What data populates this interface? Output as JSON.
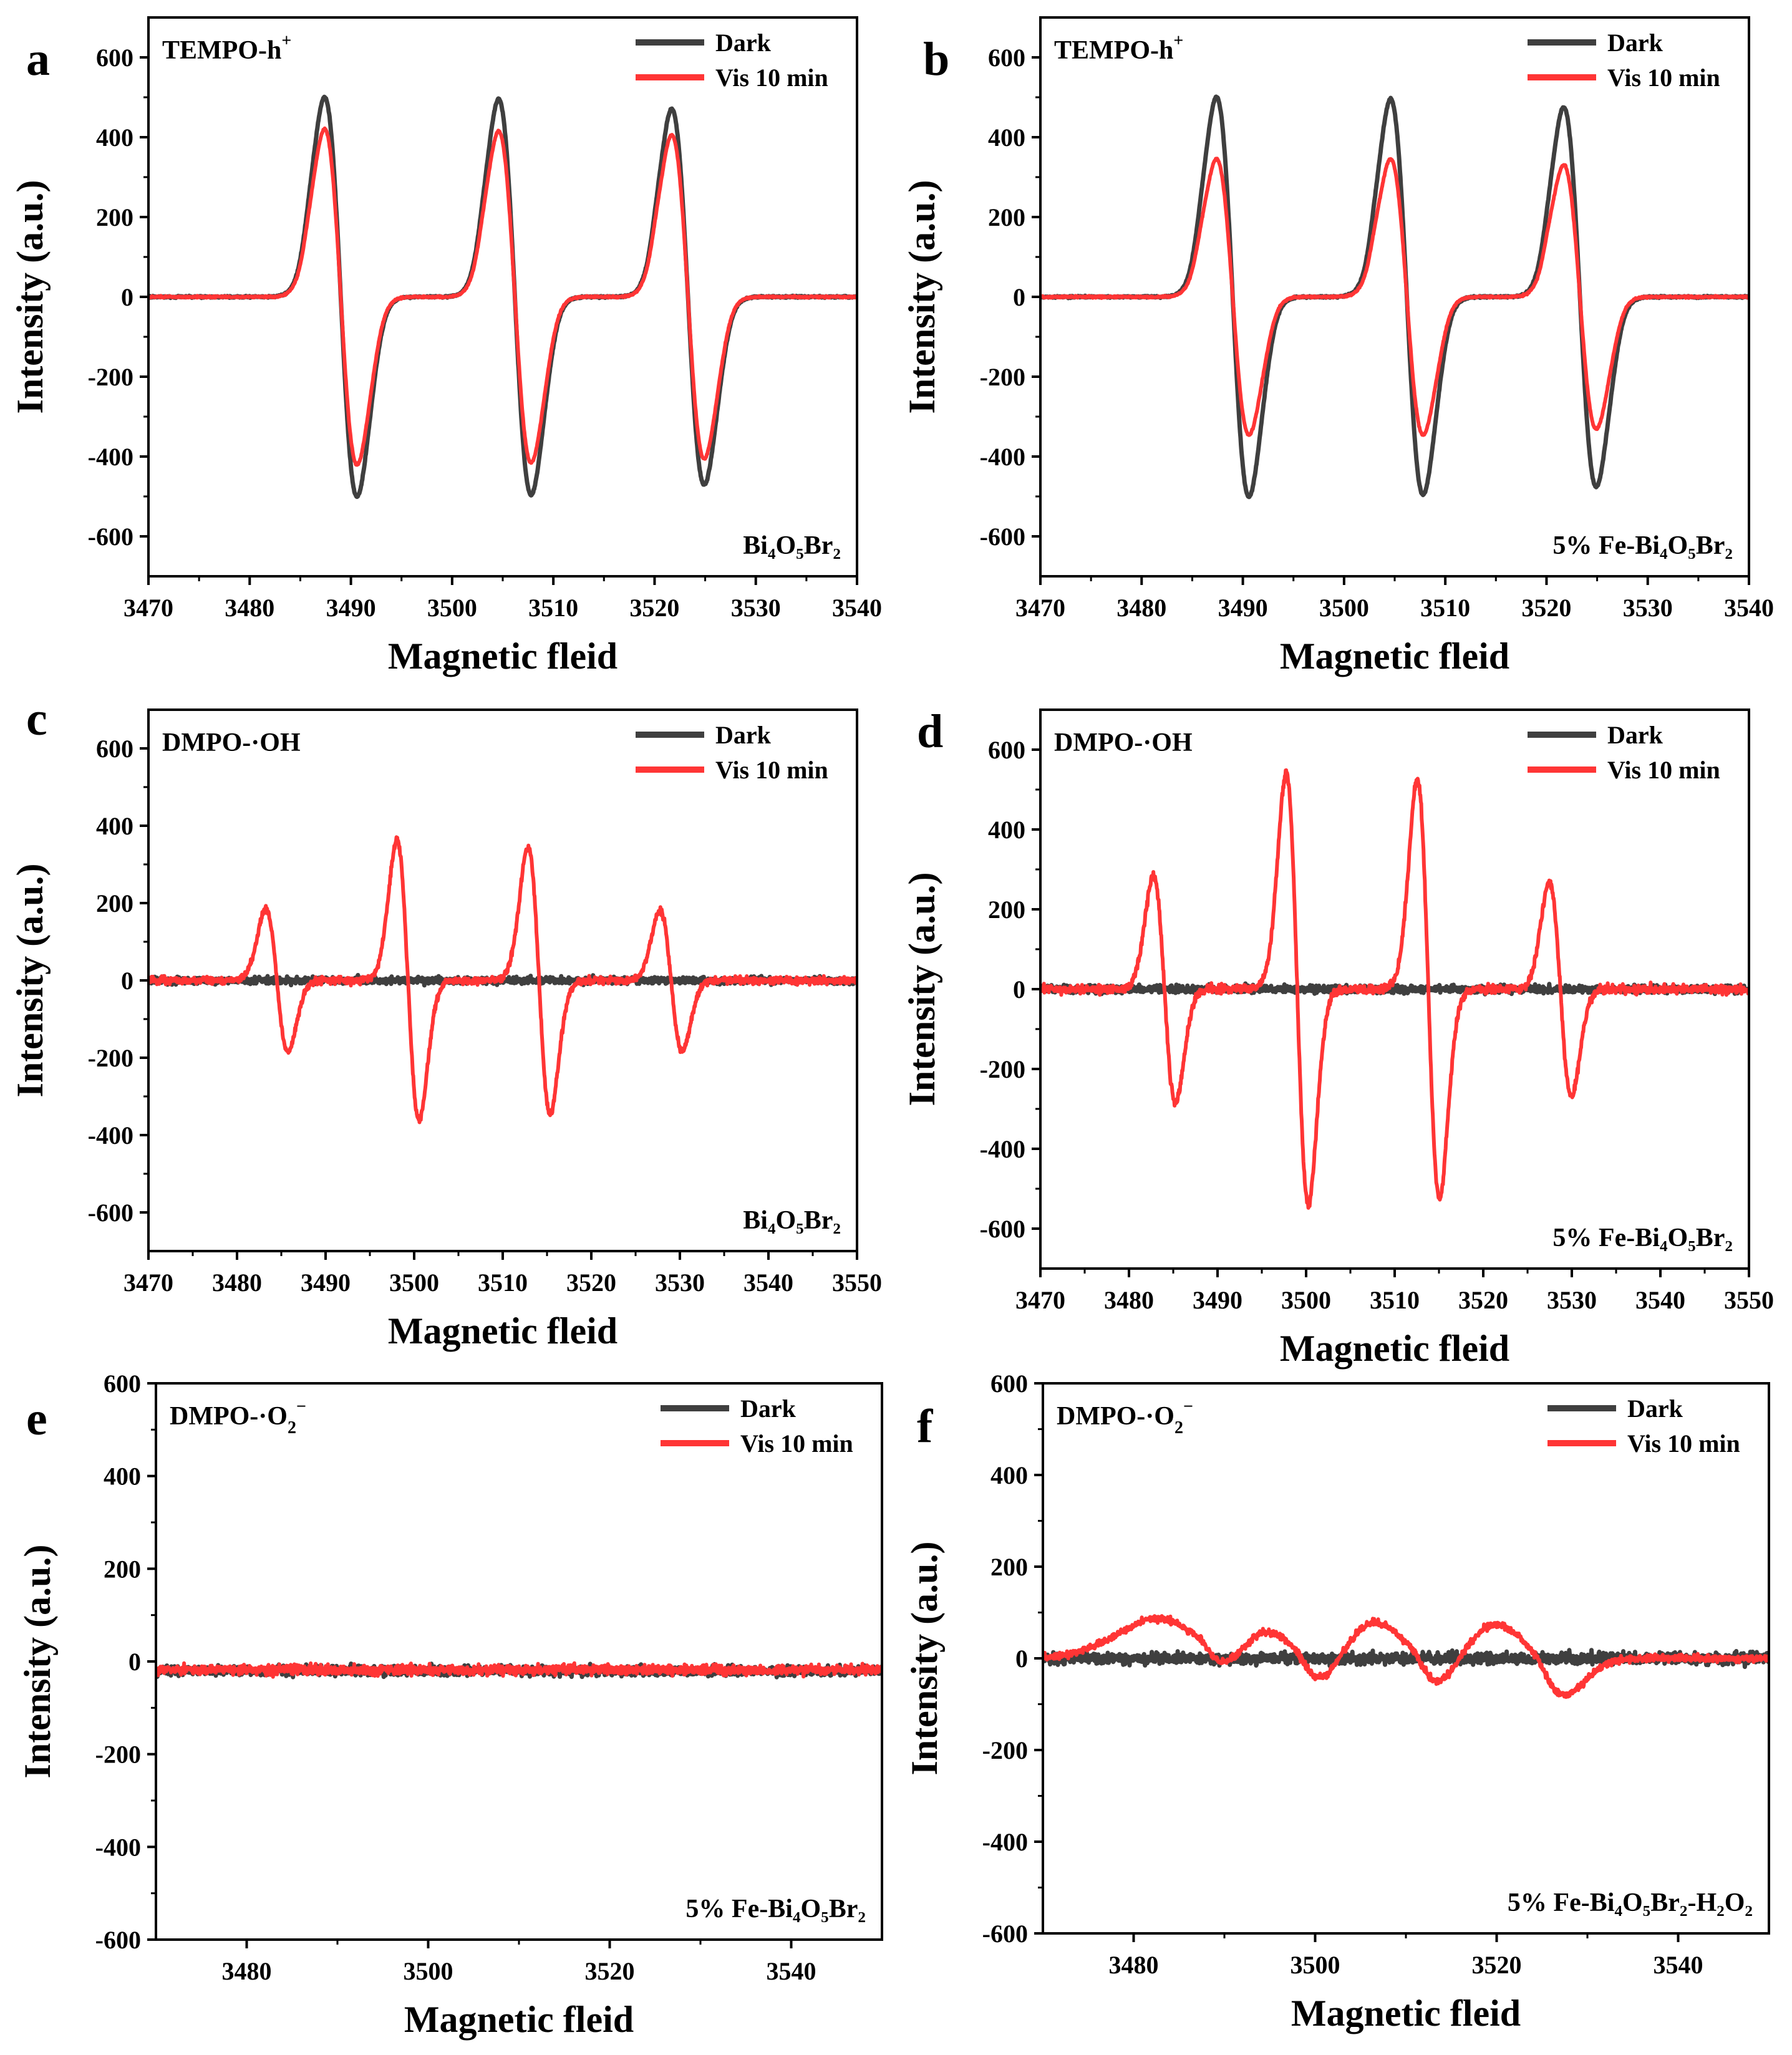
{
  "colors": {
    "dark": "#3f3f3f",
    "vis": "#ff3535",
    "axis": "#000000"
  },
  "chart_data": [
    {
      "type": "line",
      "panel": "a",
      "probe_main": "TEMPO-h",
      "probe_sup": "+",
      "sample": "Bi₄O₅Br₂",
      "xlabel": "Magnetic fleid",
      "ylabel": "Intensity (a.u.)",
      "xlim": [
        3470,
        3540
      ],
      "ylim": [
        -700,
        700
      ],
      "xticks": [
        3470,
        3480,
        3490,
        3500,
        3510,
        3520,
        3530,
        3540
      ],
      "yticks": [
        -600,
        -400,
        -200,
        0,
        200,
        400,
        600
      ],
      "series": [
        {
          "name": "Dark",
          "shape": "tempo",
          "width": 1.6,
          "noise": 2,
          "peaks": [
            {
              "x": 3489.0,
              "amp": 500
            },
            {
              "x": 3506.2,
              "amp": 495
            },
            {
              "x": 3523.3,
              "amp": 470
            }
          ]
        },
        {
          "name": "Vis 10 min",
          "shape": "tempo",
          "width": 1.6,
          "noise": 2,
          "peaks": [
            {
              "x": 3489.0,
              "amp": 420
            },
            {
              "x": 3506.2,
              "amp": 415
            },
            {
              "x": 3523.3,
              "amp": 405
            }
          ]
        }
      ]
    },
    {
      "type": "line",
      "panel": "b",
      "probe_main": "TEMPO-h",
      "probe_sup": "+",
      "sample": "5% Fe-Bi₄O₅Br₂",
      "xlabel": "Magnetic fleid",
      "ylabel": "Intensity (a.u.)",
      "xlim": [
        3470,
        3540
      ],
      "ylim": [
        -700,
        700
      ],
      "xticks": [
        3470,
        3480,
        3490,
        3500,
        3510,
        3520,
        3530,
        3540
      ],
      "yticks": [
        -600,
        -400,
        -200,
        0,
        200,
        400,
        600
      ],
      "series": [
        {
          "name": "Dark",
          "shape": "tempo",
          "width": 1.6,
          "noise": 2,
          "peaks": [
            {
              "x": 3489.0,
              "amp": 500
            },
            {
              "x": 3506.2,
              "amp": 495
            },
            {
              "x": 3523.3,
              "amp": 475
            }
          ]
        },
        {
          "name": "Vis 10 min",
          "shape": "tempo",
          "width": 1.6,
          "noise": 2,
          "peaks": [
            {
              "x": 3489.0,
              "amp": 345
            },
            {
              "x": 3506.2,
              "amp": 345
            },
            {
              "x": 3523.3,
              "amp": 330
            }
          ]
        }
      ]
    },
    {
      "type": "line",
      "panel": "c",
      "probe_main": "DMPO-·OH",
      "probe_sup": "",
      "sample": "Bi₄O₅Br₂",
      "xlabel": "Magnetic fleid",
      "ylabel": "Intensity (a.u.)",
      "xlim": [
        3470,
        3550
      ],
      "ylim": [
        -700,
        700
      ],
      "xticks": [
        3470,
        3480,
        3490,
        3500,
        3510,
        3520,
        3530,
        3540,
        3550
      ],
      "yticks": [
        -600,
        -400,
        -200,
        0,
        200,
        400,
        600
      ],
      "series": [
        {
          "name": "Dark",
          "shape": "noise",
          "width": 1.0,
          "noise": 8,
          "peaks": []
        },
        {
          "name": "Vis 10 min",
          "shape": "dmpo",
          "width": 1.25,
          "noise": 9,
          "peaks": [
            {
              "x": 3484.5,
              "amp": 185
            },
            {
              "x": 3499.3,
              "amp": 360
            },
            {
              "x": 3514.1,
              "amp": 345
            },
            {
              "x": 3529.0,
              "amp": 180
            }
          ]
        }
      ]
    },
    {
      "type": "line",
      "panel": "d",
      "probe_main": "DMPO-·OH",
      "probe_sup": "",
      "sample": "5% Fe-Bi₄O₅Br₂",
      "xlabel": "Magnetic fleid",
      "ylabel": "Intensity (a.u.)",
      "xlim": [
        3470,
        3550
      ],
      "ylim": [
        -700,
        700
      ],
      "xticks": [
        3470,
        3480,
        3490,
        3500,
        3510,
        3520,
        3530,
        3540,
        3550
      ],
      "yticks": [
        -600,
        -400,
        -200,
        0,
        200,
        400,
        600
      ],
      "series": [
        {
          "name": "Dark",
          "shape": "noise",
          "width": 1.0,
          "noise": 9,
          "peaks": []
        },
        {
          "name": "Vis 10 min",
          "shape": "dmpo",
          "width": 1.25,
          "noise": 10,
          "peaks": [
            {
              "x": 3484.0,
              "amp": 285
            },
            {
              "x": 3499.0,
              "amp": 540
            },
            {
              "x": 3513.8,
              "amp": 525
            },
            {
              "x": 3528.7,
              "amp": 270
            }
          ]
        }
      ]
    },
    {
      "type": "line",
      "panel": "e",
      "probe_main": "DMPO-·O",
      "probe_sub": "2",
      "probe_sup": "−",
      "sample": "5% Fe-Bi₄O₅Br₂",
      "xlabel": "Magnetic fleid",
      "ylabel": "Intensity (a.u.)",
      "xlim": [
        3470,
        3550
      ],
      "ylim": [
        -600,
        600
      ],
      "xticks": [
        3480,
        3500,
        3520,
        3540
      ],
      "yticks": [
        -600,
        -400,
        -200,
        0,
        200,
        400,
        600
      ],
      "series": [
        {
          "name": "Dark",
          "shape": "noise",
          "width": 1.0,
          "noise": 10,
          "offset": -20,
          "peaks": []
        },
        {
          "name": "Vis 10 min",
          "shape": "noise",
          "width": 1.0,
          "noise": 10,
          "offset": -18,
          "peaks": []
        }
      ]
    },
    {
      "type": "line",
      "panel": "f",
      "probe_main": "DMPO-·O",
      "probe_sub": "2",
      "probe_sup": "−",
      "sample": "5% Fe-Bi₄O₅Br₂-H₂O₂",
      "xlabel": "Magnetic fleid",
      "ylabel": "Intensity (a.u.)",
      "xlim": [
        3470,
        3550
      ],
      "ylim": [
        -600,
        600
      ],
      "xticks": [
        3480,
        3500,
        3520,
        3540
      ],
      "yticks": [
        -600,
        -400,
        -200,
        0,
        200,
        400,
        600
      ],
      "series": [
        {
          "name": "Dark",
          "shape": "noise",
          "width": 1.0,
          "noise": 12,
          "peaks": []
        },
        {
          "name": "Vis 10 min",
          "shape": "superoxide",
          "width": 3.0,
          "noise": 7,
          "peaks": [
            {
              "x": 3487.5,
              "amp": 80
            },
            {
              "x": 3498.0,
              "amp": 85
            },
            {
              "x": 3511.0,
              "amp": 85
            },
            {
              "x": 3524.5,
              "amp": 80
            }
          ]
        }
      ]
    }
  ]
}
